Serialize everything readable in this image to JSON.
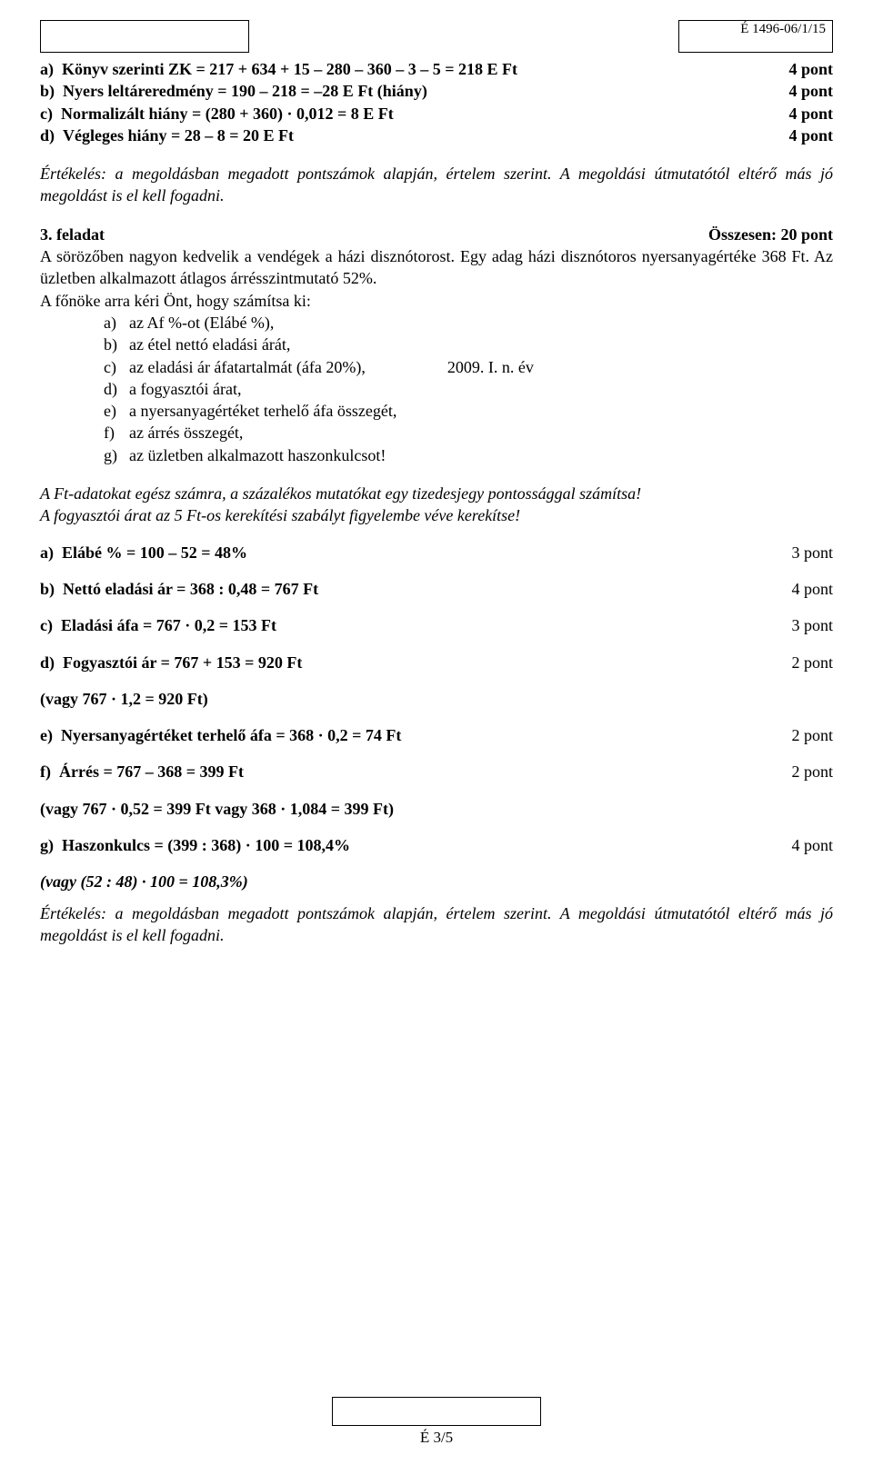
{
  "doc_id": "É 1496-06/1/15",
  "top_answers": [
    {
      "label": "a)",
      "text": "Könyv szerinti ZK = 217 + 634 + 15 – 280 – 360 – 3 – 5 = 218 E Ft",
      "pts": "4 pont"
    },
    {
      "label": "b)",
      "text": "Nyers leltáreredmény = 190 – 218 = –28 E Ft (hiány)",
      "pts": "4 pont"
    },
    {
      "label": "c)",
      "text": "Normalizált hiány = (280 + 360) · 0,012 = 8 E Ft",
      "pts": "4 pont"
    },
    {
      "label": "d)",
      "text": "Végleges hiány = 28 – 8 = 20 E Ft",
      "pts": "4 pont"
    }
  ],
  "eval_note": "Értékelés: a megoldásban megadott pontszámok alapján, értelem szerint. A megoldási útmutatótól eltérő más jó megoldást is el kell fogadni.",
  "task3": {
    "heading_left": "3. feladat",
    "heading_right": "Összesen: 20 pont",
    "intro": "A sörözőben nagyon kedvelik a vendégek a házi disznótorost. Egy adag házi disznótoros nyersanyagértéke 368 Ft. Az üzletben alkalmazott átlagos árrésszintmutató 52%.",
    "lead": "A főnöke arra kéri Önt, hogy számítsa ki:",
    "items": [
      {
        "m": "a)",
        "t": "az Af %-ot (Elábé %),"
      },
      {
        "m": "b)",
        "t": "az étel nettó eladási árát,"
      },
      {
        "m": "c)",
        "t": "az eladási ár áfatartalmát (áfa 20%),",
        "yr": "2009. I. n. év"
      },
      {
        "m": "d)",
        "t": "a fogyasztói árat,"
      },
      {
        "m": "e)",
        "t": "a nyersanyagértéket terhelő áfa összegét,"
      },
      {
        "m": "f)",
        "t": "az árrés összegét,"
      },
      {
        "m": "g)",
        "t": "az üzletben alkalmazott haszonkulcsot!"
      }
    ],
    "note1": "A Ft-adatokat egész számra, a százalékos mutatókat egy tizedesjegy pontossággal számítsa!",
    "note2": "A fogyasztói árat az 5 Ft-os kerekítési szabályt figyelembe véve kerekítse!"
  },
  "answers": [
    {
      "label": "a)",
      "text": "Elábé % = 100 – 52 = 48%",
      "pts": "3 pont",
      "alt": null
    },
    {
      "label": "b)",
      "text": "Nettó eladási ár = 368 : 0,48 = 767 Ft",
      "pts": "4 pont",
      "alt": null
    },
    {
      "label": "c)",
      "text": "Eladási áfa = 767 · 0,2 = 153 Ft",
      "pts": "3 pont",
      "alt": null
    },
    {
      "label": "d)",
      "text": "Fogyasztói ár = 767 + 153 = 920 Ft",
      "pts": "2 pont",
      "alt": "(vagy 767 · 1,2 = 920 Ft)"
    },
    {
      "label": "e)",
      "text": "Nyersanyagértéket terhelő áfa = 368 · 0,2 = 74 Ft",
      "pts": "2 pont",
      "alt": null
    },
    {
      "label": "f)",
      "text": "Árrés = 767 – 368 = 399 Ft",
      "pts": "2 pont",
      "alt": "(vagy 767 · 0,52 = 399 Ft vagy 368 · 1,084 = 399 Ft)"
    },
    {
      "label": "g)",
      "text": "Haszonkulcs = (399 : 368) · 100 = 108,4%",
      "pts": "4 pont",
      "alt": "(vagy (52 : 48) · 100 = 108,3%)"
    }
  ],
  "footer_page": "É 3/5"
}
